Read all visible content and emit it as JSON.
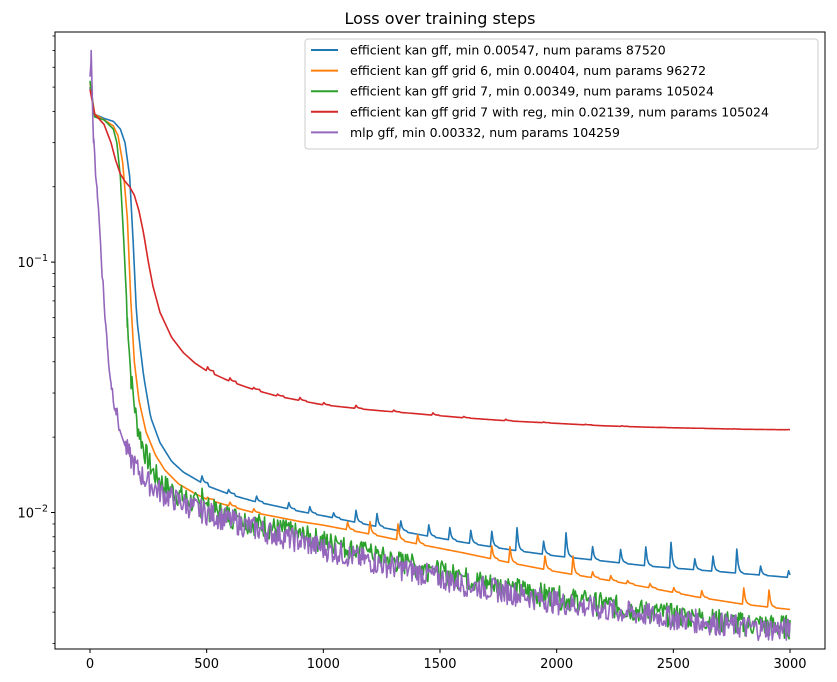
{
  "chart_data": {
    "type": "line",
    "title": "Loss over training steps",
    "xlabel": "",
    "ylabel": "",
    "yscale": "log",
    "xlim": [
      -150,
      3150
    ],
    "ylim": [
      0.00285,
      0.83
    ],
    "x_ticks": [
      0,
      500,
      1000,
      1500,
      2000,
      2500,
      3000
    ],
    "y_major_ticks": [
      {
        "value": 0.1,
        "base": "10",
        "exp": "−1"
      },
      {
        "value": 0.01,
        "base": "10",
        "exp": "−2"
      }
    ],
    "y_minor_ticks": [
      0.003,
      0.004,
      0.005,
      0.006,
      0.007,
      0.008,
      0.009,
      0.02,
      0.03,
      0.04,
      0.05,
      0.06,
      0.07,
      0.08,
      0.09,
      0.2,
      0.3,
      0.4,
      0.5,
      0.6,
      0.7,
      0.8
    ],
    "legend_position": "top-right",
    "series": [
      {
        "name": "efficient kan gff, min 0.00547, num params 87520",
        "color": "#1f77b4",
        "x": [
          0,
          20,
          60,
          100,
          130,
          150,
          170,
          185,
          200,
          230,
          260,
          300,
          350,
          400,
          500,
          600,
          700,
          800,
          900,
          1000,
          1200,
          1400,
          1600,
          1800,
          2000,
          2200,
          2400,
          2600,
          2800,
          3000
        ],
        "y": [
          0.5,
          0.39,
          0.375,
          0.365,
          0.34,
          0.3,
          0.22,
          0.12,
          0.06,
          0.035,
          0.024,
          0.019,
          0.016,
          0.0145,
          0.0128,
          0.0118,
          0.0111,
          0.0106,
          0.0101,
          0.0097,
          0.0089,
          0.0082,
          0.0076,
          0.0071,
          0.0067,
          0.0064,
          0.0061,
          0.0059,
          0.0057,
          0.0055
        ],
        "spikes": [
          [
            480,
            0.014
          ],
          [
            590,
            0.0128
          ],
          [
            710,
            0.0122
          ],
          [
            850,
            0.0112
          ],
          [
            940,
            0.0108
          ],
          [
            1040,
            0.0104
          ],
          [
            1140,
            0.0102
          ],
          [
            1230,
            0.0099
          ],
          [
            1330,
            0.0096
          ],
          [
            1450,
            0.0093
          ],
          [
            1540,
            0.0091
          ],
          [
            1630,
            0.0089
          ],
          [
            1720,
            0.0089
          ],
          [
            1830,
            0.0087
          ],
          [
            1940,
            0.0086
          ],
          [
            2040,
            0.0083
          ],
          [
            2150,
            0.0082
          ],
          [
            2270,
            0.008
          ],
          [
            2380,
            0.0078
          ],
          [
            2490,
            0.0076
          ],
          [
            2590,
            0.0068
          ],
          [
            2670,
            0.0067
          ],
          [
            2770,
            0.0078
          ],
          [
            2870,
            0.0066
          ],
          [
            2990,
            0.0062
          ]
        ]
      },
      {
        "name": "efficient kan gff grid 6, min 0.00404, num params 96272",
        "color": "#ff7f0e",
        "x": [
          0,
          20,
          60,
          100,
          120,
          140,
          160,
          175,
          190,
          210,
          240,
          280,
          320,
          380,
          450,
          500,
          600,
          700,
          800,
          900,
          1000,
          1200,
          1400,
          1600,
          1800,
          2000,
          2200,
          2400,
          2600,
          2800,
          3000
        ],
        "y": [
          0.52,
          0.39,
          0.37,
          0.35,
          0.32,
          0.25,
          0.15,
          0.07,
          0.04,
          0.028,
          0.021,
          0.017,
          0.0148,
          0.013,
          0.0119,
          0.0113,
          0.0106,
          0.01,
          0.0096,
          0.0092,
          0.0089,
          0.0082,
          0.0075,
          0.0069,
          0.0063,
          0.0058,
          0.0054,
          0.005,
          0.0046,
          0.0043,
          0.0041
        ],
        "spikes": [
          [
            500,
            0.0117
          ],
          [
            600,
            0.011
          ],
          [
            700,
            0.0105
          ],
          [
            1100,
            0.0098
          ],
          [
            1200,
            0.0092
          ],
          [
            1320,
            0.009
          ],
          [
            1400,
            0.0088
          ],
          [
            1720,
            0.0077
          ],
          [
            1800,
            0.0073
          ],
          [
            1950,
            0.0067
          ],
          [
            2070,
            0.0067
          ],
          [
            2150,
            0.0061
          ],
          [
            2230,
            0.0057
          ],
          [
            2300,
            0.0055
          ],
          [
            2400,
            0.0052
          ],
          [
            2500,
            0.0051
          ],
          [
            2620,
            0.005
          ],
          [
            2800,
            0.0053
          ],
          [
            2910,
            0.0049
          ]
        ]
      },
      {
        "name": "efficient kan gff grid 7, min 0.00349, num params 105024",
        "color": "#2ca02c",
        "x": [
          0,
          20,
          60,
          100,
          115,
          130,
          145,
          160,
          175,
          200,
          230,
          270,
          320,
          380,
          450,
          500,
          600,
          700,
          800,
          900,
          1000,
          1200,
          1400,
          1600,
          1800,
          2000,
          2200,
          2400,
          2600,
          2800,
          3000
        ],
        "y": [
          0.53,
          0.38,
          0.37,
          0.34,
          0.3,
          0.22,
          0.12,
          0.06,
          0.035,
          0.023,
          0.018,
          0.0145,
          0.0128,
          0.0118,
          0.0109,
          0.0104,
          0.0097,
          0.0091,
          0.0086,
          0.0081,
          0.0077,
          0.0068,
          0.0061,
          0.0055,
          0.005,
          0.0046,
          0.0043,
          0.004,
          0.0038,
          0.0036,
          0.0035
        ],
        "spikes": [
          [
            480,
            0.0125
          ],
          [
            620,
            0.0103
          ],
          [
            840,
            0.0093
          ],
          [
            1050,
            0.0083
          ],
          [
            1180,
            0.0076
          ],
          [
            1360,
            0.0068
          ],
          [
            1450,
            0.0063
          ],
          [
            1580,
            0.0059
          ],
          [
            1790,
            0.0056
          ],
          [
            1980,
            0.005
          ],
          [
            2120,
            0.0046
          ],
          [
            2200,
            0.0044
          ],
          [
            2420,
            0.0042
          ],
          [
            2580,
            0.004
          ],
          [
            2720,
            0.0039
          ],
          [
            2850,
            0.0038
          ]
        ]
      },
      {
        "name": "efficient kan gff grid 7 with reg, min 0.02139, num params 105024",
        "color": "#d62728",
        "x": [
          0,
          20,
          60,
          90,
          110,
          130,
          150,
          170,
          190,
          210,
          230,
          250,
          270,
          300,
          350,
          400,
          450,
          500,
          600,
          700,
          800,
          900,
          1000,
          1200,
          1400,
          1600,
          1800,
          2000,
          2200,
          2400,
          2600,
          2800,
          3000
        ],
        "y": [
          0.49,
          0.39,
          0.355,
          0.3,
          0.255,
          0.225,
          0.21,
          0.2,
          0.185,
          0.16,
          0.13,
          0.1,
          0.08,
          0.063,
          0.05,
          0.0435,
          0.0395,
          0.0368,
          0.0334,
          0.031,
          0.0292,
          0.028,
          0.0269,
          0.0257,
          0.0248,
          0.0239,
          0.0232,
          0.0227,
          0.0222,
          0.0219,
          0.0217,
          0.0215,
          0.0214
        ],
        "spikes": [
          [
            500,
            0.0395
          ],
          [
            600,
            0.0345
          ],
          [
            700,
            0.0318
          ],
          [
            800,
            0.0302
          ],
          [
            900,
            0.0288
          ],
          [
            1000,
            0.0277
          ],
          [
            1140,
            0.0268
          ],
          [
            1300,
            0.0258
          ],
          [
            1470,
            0.025
          ],
          [
            1600,
            0.0243
          ],
          [
            1780,
            0.0237
          ],
          [
            1940,
            0.0231
          ],
          [
            2120,
            0.0226
          ],
          [
            2280,
            0.0222
          ],
          [
            2440,
            0.0219
          ],
          [
            2600,
            0.0217
          ],
          [
            2760,
            0.0216
          ],
          [
            2990,
            0.0215
          ]
        ]
      },
      {
        "name": "mlp gff, min 0.00332, num params 104259",
        "color": "#9467bd",
        "x": [
          0,
          5,
          15,
          30,
          45,
          60,
          75,
          90,
          110,
          130,
          150,
          170,
          200,
          230,
          270,
          320,
          380,
          450,
          500,
          600,
          700,
          800,
          900,
          1000,
          1200,
          1400,
          1600,
          1800,
          2000,
          2200,
          2400,
          2600,
          2800,
          3000
        ],
        "y": [
          0.55,
          0.7,
          0.3,
          0.2,
          0.12,
          0.07,
          0.045,
          0.033,
          0.026,
          0.021,
          0.0185,
          0.0168,
          0.015,
          0.0138,
          0.0127,
          0.0118,
          0.0111,
          0.0104,
          0.01,
          0.0093,
          0.0087,
          0.0082,
          0.0077,
          0.0072,
          0.0064,
          0.0058,
          0.0052,
          0.0048,
          0.0044,
          0.0041,
          0.0039,
          0.0037,
          0.0035,
          0.0034
        ],
        "spikes": []
      }
    ]
  }
}
